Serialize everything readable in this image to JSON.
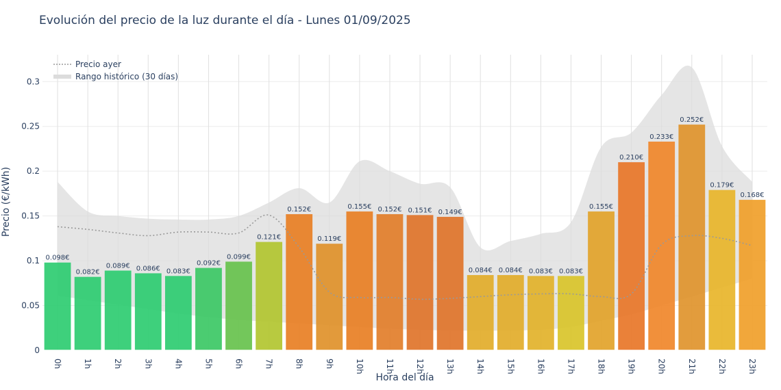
{
  "chart_data": {
    "type": "bar",
    "title": "Evolución del precio de la luz durante el día - Lunes 01/09/2025",
    "xlabel": "Hora del día",
    "ylabel": "Precio (€/kWh)",
    "ylim": [
      0,
      0.33
    ],
    "yticks": [
      0,
      0.05,
      0.1,
      0.15,
      0.2,
      0.25,
      0.3
    ],
    "ytick_labels": [
      "0",
      "0.05",
      "0.1",
      "0.15",
      "0.2",
      "0.25",
      "0.3"
    ],
    "grid": true,
    "legend_position": "top-left",
    "categories": [
      "0h",
      "1h",
      "2h",
      "3h",
      "4h",
      "5h",
      "6h",
      "7h",
      "8h",
      "9h",
      "10h",
      "11h",
      "12h",
      "13h",
      "14h",
      "15h",
      "16h",
      "17h",
      "18h",
      "19h",
      "20h",
      "21h",
      "22h",
      "23h"
    ],
    "values": [
      0.098,
      0.082,
      0.089,
      0.086,
      0.083,
      0.092,
      0.099,
      0.121,
      0.152,
      0.119,
      0.155,
      0.152,
      0.151,
      0.149,
      0.084,
      0.084,
      0.083,
      0.083,
      0.155,
      0.21,
      0.233,
      0.252,
      0.179,
      0.168
    ],
    "data_labels": [
      "0.098€",
      "0.082€",
      "0.089€",
      "0.086€",
      "0.083€",
      "0.092€",
      "0.099€",
      "0.121€",
      "0.152€",
      "0.119€",
      "0.155€",
      "0.152€",
      "0.151€",
      "0.149€",
      "0.084€",
      "0.084€",
      "0.083€",
      "0.083€",
      "0.155€",
      "0.210€",
      "0.233€",
      "0.252€",
      "0.179€",
      "0.168€"
    ],
    "bar_colors": [
      "#2ecc71",
      "#2ecc71",
      "#2ecc71",
      "#2ecc71",
      "#2ecc71",
      "#3cc865",
      "#67c24d",
      "#b2c630",
      "#e87f24",
      "#e0912a",
      "#e87f24",
      "#e27e2a",
      "#e0742a",
      "#e0742a",
      "#e2ac2a",
      "#e2ac2a",
      "#e2b22a",
      "#d9c42a",
      "#e2a32a",
      "#e87628",
      "#f0872a",
      "#e0942c",
      "#e8b52a",
      "#f0a02a"
    ],
    "series": [
      {
        "name": "Precio ayer",
        "style": "dotted-line",
        "color": "#999999",
        "values": [
          0.138,
          0.135,
          0.131,
          0.128,
          0.132,
          0.132,
          0.131,
          0.151,
          0.115,
          0.065,
          0.059,
          0.059,
          0.057,
          0.058,
          0.06,
          0.062,
          0.063,
          0.063,
          0.06,
          0.063,
          0.118,
          0.128,
          0.125,
          0.117
        ]
      },
      {
        "name": "Rango histórico (30 días)",
        "style": "band",
        "color": "#dcdcdc",
        "upper": [
          0.188,
          0.155,
          0.15,
          0.147,
          0.146,
          0.146,
          0.15,
          0.165,
          0.181,
          0.165,
          0.211,
          0.2,
          0.186,
          0.182,
          0.115,
          0.122,
          0.13,
          0.143,
          0.227,
          0.243,
          0.285,
          0.316,
          0.228,
          0.188
        ],
        "lower": [
          0.061,
          0.056,
          0.051,
          0.046,
          0.041,
          0.037,
          0.034,
          0.032,
          0.03,
          0.028,
          0.026,
          0.024,
          0.023,
          0.022,
          0.022,
          0.022,
          0.023,
          0.026,
          0.033,
          0.04,
          0.05,
          0.06,
          0.07,
          0.08
        ]
      }
    ]
  }
}
